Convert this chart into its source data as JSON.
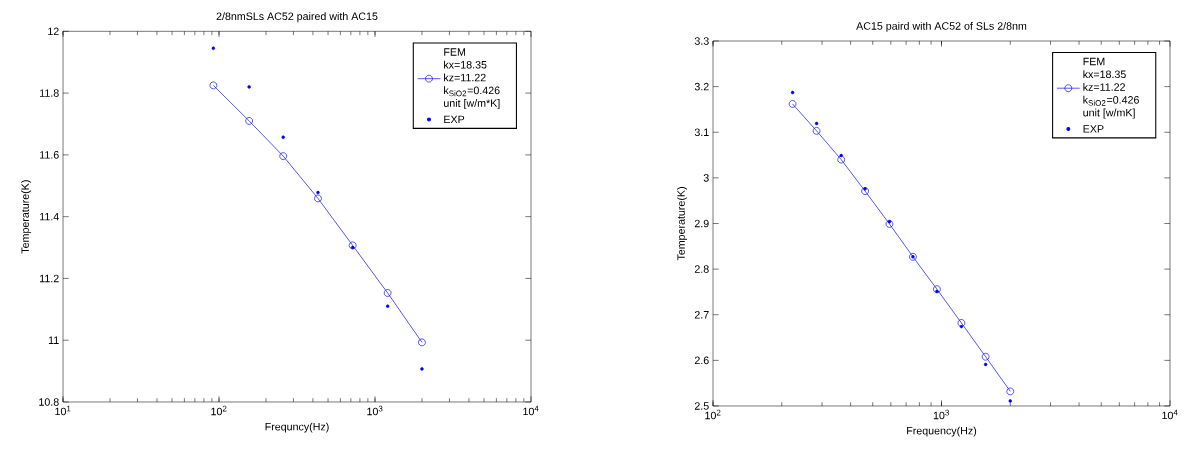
{
  "chart_data": [
    {
      "type": "line",
      "title": "2/8nmSLs AC52 paired with AC15",
      "xlabel": "Frequncy(Hz)",
      "ylabel": "Temperature(K)",
      "log": "x",
      "x": [
        92,
        156,
        258,
        431,
        719,
        1205,
        2000
      ],
      "xlim": [
        10,
        10000
      ],
      "xticks": [
        {
          "value": 10,
          "label": "10$^{1}$"
        },
        {
          "value": 100,
          "label": "10$^{2}$"
        },
        {
          "value": 1000,
          "label": "10$^{3}$"
        },
        {
          "value": 10000,
          "label": "10$^{4}$"
        }
      ],
      "ylim": [
        10.8,
        12
      ],
      "yticks": [
        10.8,
        11,
        11.2,
        11.4,
        11.6,
        11.8,
        12
      ],
      "legend": "top right",
      "series": [
        {
          "name": "FEM kx=18.35 kz=11.22 k$_{SiO2}$=0.426 unit [w/m*K]",
          "marker": "circle",
          "line_style": "solid",
          "color": "#0000ff",
          "values": [
            11.825,
            11.71,
            11.596,
            11.459,
            11.307,
            11.153,
            10.993
          ]
        },
        {
          "name": "EXP",
          "type": "scatter",
          "color": "#0000ff",
          "values": [
            11.945,
            11.82,
            11.657,
            11.478,
            11.3,
            11.11,
            10.907
          ]
        }
      ]
    },
    {
      "type": "line",
      "title": "AC15 paird with AC52 of SLs 2/8nm",
      "xlabel": "Frequency(Hz)",
      "ylabel": "Temperature(K)",
      "log": "x",
      "x": [
        223,
        284,
        364,
        463,
        592,
        750,
        955,
        1222,
        1560,
        2000
      ],
      "xlim": [
        100,
        10000
      ],
      "xticks": [
        {
          "value": 100,
          "label": "10$^{2}$"
        },
        {
          "value": 1000,
          "label": "10$^{3}$"
        },
        {
          "value": 10000,
          "label": "10$^{4}$"
        }
      ],
      "ylim": [
        2.5,
        3.3
      ],
      "yticks": [
        2.5,
        2.6,
        2.7,
        2.8,
        2.9,
        3,
        3.1,
        3.2,
        3.3
      ],
      "legend": "top right",
      "series": [
        {
          "name": "FEM kx=18.35 kz=11.22 k$_{SiO2}$=0.426 unit [w/mK]",
          "marker": "circle",
          "line_style": "solid",
          "color": "#0000ff",
          "values": [
            3.162,
            3.103,
            3.04,
            2.971,
            2.899,
            2.827,
            2.756,
            2.682,
            2.608,
            2.532
          ]
        },
        {
          "name": "EXP",
          "type": "scatter",
          "color": "#0000ff",
          "values": [
            3.187,
            3.119,
            3.049,
            2.976,
            2.904,
            2.827,
            2.751,
            2.674,
            2.591,
            2.511
          ]
        }
      ]
    }
  ]
}
